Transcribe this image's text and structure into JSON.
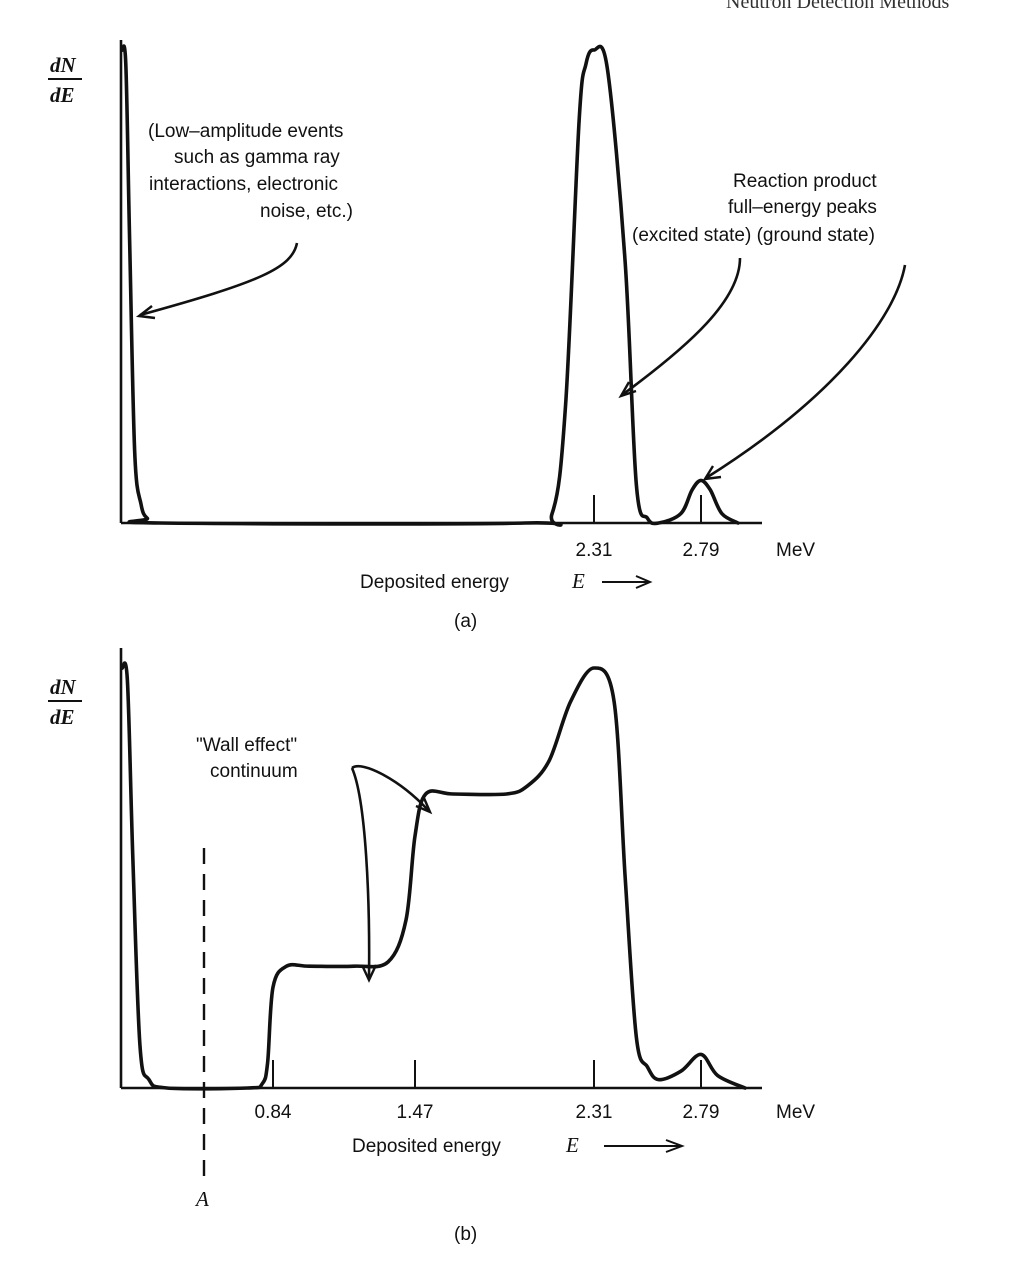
{
  "page_header": "Neutron Detection Methods",
  "chart_data": [
    {
      "type": "line",
      "panel": "(a)",
      "ylabel_num": "dN",
      "ylabel_den": "dE",
      "xlabel": "Deposited energy",
      "xlabel_var": "E",
      "x_unit": "MeV",
      "ticks": [
        "2.31",
        "2.79"
      ],
      "tick_values": [
        2.31,
        2.79
      ],
      "series": [
        {
          "x": [
            0.0,
            0.03,
            0.06,
            0.1,
            0.15,
            0.2,
            0.3,
            1.8,
            2.0,
            2.1,
            2.2,
            2.25,
            2.31,
            2.37,
            2.45,
            2.5,
            2.55,
            2.6,
            2.7,
            2.75,
            2.79,
            2.83,
            2.88,
            2.95
          ],
          "y": [
            100,
            97,
            60,
            15,
            4,
            1,
            0,
            0,
            2,
            25,
            85,
            97,
            100,
            96,
            55,
            8,
            1,
            0,
            2,
            7,
            9,
            7,
            2,
            0
          ]
        }
      ],
      "annotations": [
        "(Low–amplitude events",
        "such as gamma ray",
        "interactions, electronic",
        "noise, etc.)",
        "Reaction product",
        "full–energy peaks",
        "(excited state)  (ground state)"
      ]
    },
    {
      "type": "line",
      "panel": "(b)",
      "ylabel_num": "dN",
      "ylabel_den": "dE",
      "xlabel": "Deposited energy",
      "xlabel_var": "E",
      "x_unit": "MeV",
      "ticks": [
        "0.84",
        "1.47",
        "2.31",
        "2.79"
      ],
      "tick_values": [
        0.84,
        1.47,
        2.31,
        2.79
      ],
      "series": [
        {
          "x": [
            0.0,
            0.03,
            0.06,
            0.1,
            0.15,
            0.25,
            0.7,
            0.78,
            0.81,
            0.84,
            0.9,
            1.0,
            1.2,
            1.35,
            1.43,
            1.47,
            1.52,
            1.65,
            1.9,
            2.0,
            2.1,
            2.2,
            2.31,
            2.4,
            2.45,
            2.5,
            2.55,
            2.6,
            2.7,
            2.79,
            2.85,
            2.95
          ],
          "y": [
            100,
            97,
            55,
            10,
            2,
            0,
            0,
            1,
            6,
            24,
            29,
            29,
            29,
            30,
            40,
            60,
            70,
            70,
            70,
            72,
            78,
            92,
            100,
            92,
            50,
            12,
            5,
            2,
            4,
            8,
            3,
            0
          ]
        }
      ],
      "annotations": [
        "\"Wall effect\"",
        "continuum",
        "A"
      ]
    }
  ]
}
